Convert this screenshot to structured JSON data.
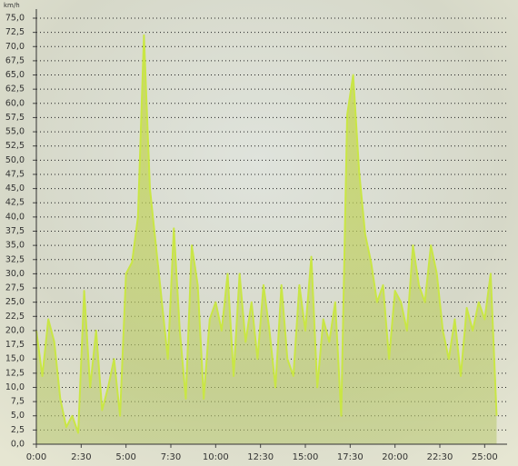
{
  "chart_data": {
    "type": "area",
    "unit_label": "km/h",
    "color": "#c9e645",
    "fill_color": "#b9cf5a",
    "grid": true,
    "xlim": [
      0,
      1575
    ],
    "ylim": [
      0,
      75
    ],
    "xticks": [
      {
        "value": 0,
        "label": "0:00"
      },
      {
        "value": 150,
        "label": "2:30"
      },
      {
        "value": 300,
        "label": "5:00"
      },
      {
        "value": 450,
        "label": "7:30"
      },
      {
        "value": 600,
        "label": "10:00"
      },
      {
        "value": 750,
        "label": "12:30"
      },
      {
        "value": 900,
        "label": "15:00"
      },
      {
        "value": 1050,
        "label": "17:30"
      },
      {
        "value": 1200,
        "label": "20:00"
      },
      {
        "value": 1350,
        "label": "22:30"
      },
      {
        "value": 1500,
        "label": "25:00"
      }
    ],
    "yticks": [
      {
        "value": 0,
        "label": "0,0"
      },
      {
        "value": 2.5,
        "label": "2,5"
      },
      {
        "value": 5,
        "label": "5,0"
      },
      {
        "value": 7.5,
        "label": "7,5"
      },
      {
        "value": 10,
        "label": "10,0"
      },
      {
        "value": 12.5,
        "label": "12,5"
      },
      {
        "value": 15,
        "label": "15,0"
      },
      {
        "value": 17.5,
        "label": "17,5"
      },
      {
        "value": 20,
        "label": "20,0"
      },
      {
        "value": 22.5,
        "label": "22,5"
      },
      {
        "value": 25,
        "label": "25,0"
      },
      {
        "value": 27.5,
        "label": "27,5"
      },
      {
        "value": 30,
        "label": "30,0"
      },
      {
        "value": 32.5,
        "label": "32,5"
      },
      {
        "value": 35,
        "label": "35,0"
      },
      {
        "value": 37.5,
        "label": "37,5"
      },
      {
        "value": 40,
        "label": "40,0"
      },
      {
        "value": 42.5,
        "label": "42,5"
      },
      {
        "value": 45,
        "label": "45,0"
      },
      {
        "value": 47.5,
        "label": "47,5"
      },
      {
        "value": 50,
        "label": "50,0"
      },
      {
        "value": 52.5,
        "label": "52,5"
      },
      {
        "value": 55,
        "label": "55,0"
      },
      {
        "value": 57.5,
        "label": "57,5"
      },
      {
        "value": 60,
        "label": "60,0"
      },
      {
        "value": 62.5,
        "label": "62,5"
      },
      {
        "value": 65,
        "label": "65,0"
      },
      {
        "value": 67.5,
        "label": "67,5"
      },
      {
        "value": 70,
        "label": "70,0"
      },
      {
        "value": 72.5,
        "label": "72,5"
      },
      {
        "value": 75,
        "label": "75,0"
      }
    ],
    "x": [
      0,
      20,
      40,
      60,
      80,
      100,
      120,
      140,
      160,
      180,
      200,
      220,
      240,
      260,
      280,
      300,
      320,
      340,
      360,
      380,
      400,
      420,
      440,
      460,
      480,
      500,
      520,
      540,
      560,
      580,
      600,
      620,
      640,
      660,
      680,
      700,
      720,
      740,
      760,
      780,
      800,
      820,
      840,
      860,
      880,
      900,
      920,
      940,
      960,
      980,
      1000,
      1020,
      1040,
      1060,
      1080,
      1100,
      1120,
      1140,
      1160,
      1180,
      1200,
      1220,
      1240,
      1260,
      1280,
      1300,
      1320,
      1340,
      1360,
      1380,
      1400,
      1420,
      1440,
      1460,
      1480,
      1500,
      1520,
      1540
    ],
    "values": [
      20,
      12,
      22,
      18,
      8,
      3,
      5,
      2,
      27,
      10,
      20,
      6,
      10,
      15,
      5,
      30,
      32,
      40,
      72,
      45,
      35,
      25,
      15,
      38,
      20,
      8,
      35,
      28,
      8,
      22,
      25,
      20,
      30,
      12,
      30,
      18,
      25,
      15,
      28,
      20,
      10,
      28,
      15,
      12,
      28,
      20,
      33,
      10,
      22,
      18,
      25,
      5,
      58,
      65,
      48,
      37,
      32,
      25,
      28,
      15,
      27,
      25,
      20,
      35,
      28,
      25,
      35,
      30,
      20,
      15,
      22,
      12,
      24,
      20,
      25,
      22,
      30,
      5
    ]
  }
}
